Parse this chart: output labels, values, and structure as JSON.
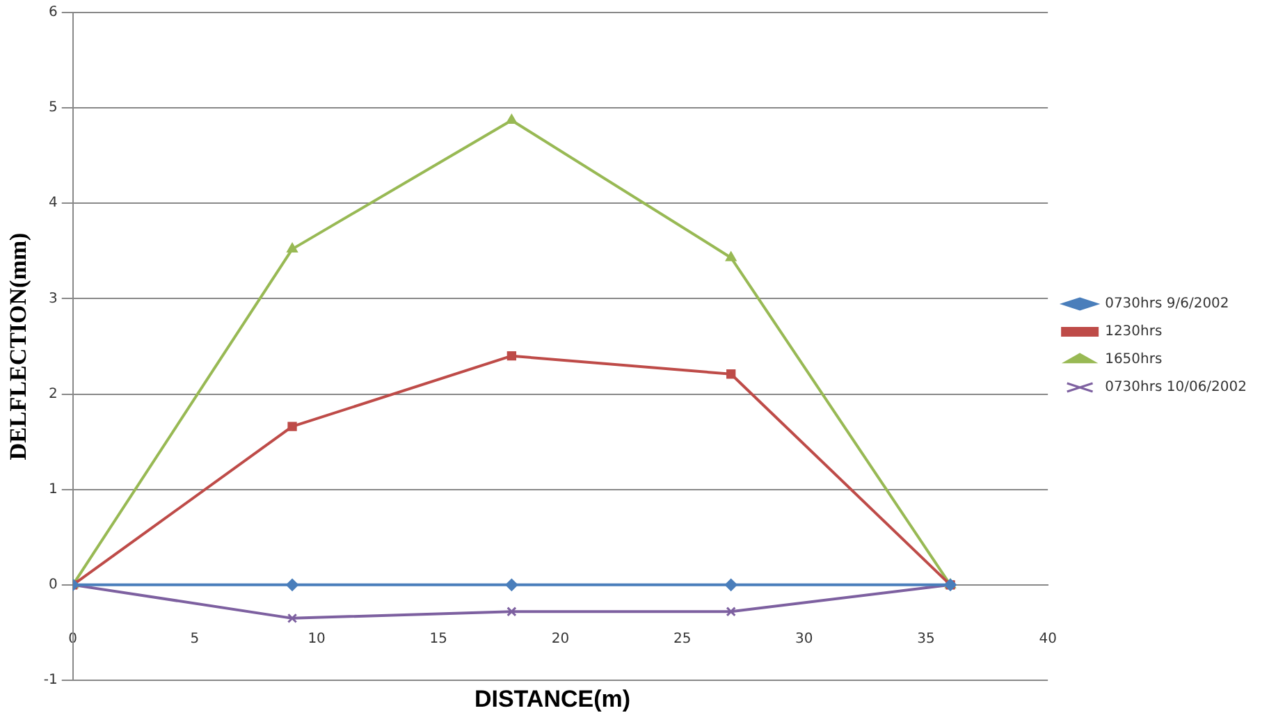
{
  "chart_data": {
    "type": "line",
    "xlabel": "DISTANCE(m)",
    "ylabel": "DELFLECTION(mm)",
    "x": [
      0,
      9,
      18,
      27,
      36
    ],
    "series": [
      {
        "name": "0730hrs 9/6/2002",
        "color": "#4a7ebb",
        "marker": "diamond",
        "values": [
          0,
          0,
          0,
          0,
          0
        ]
      },
      {
        "name": "1230hrs",
        "color": "#be4b48",
        "marker": "square",
        "values": [
          0,
          1.66,
          2.4,
          2.21,
          0
        ]
      },
      {
        "name": "1650hrs",
        "color": "#98b954",
        "marker": "triangle",
        "values": [
          0,
          3.52,
          4.87,
          3.43,
          0
        ]
      },
      {
        "name": "0730hrs 10/06/2002",
        "color": "#7d60a0",
        "marker": "cross",
        "values": [
          0,
          -0.35,
          -0.28,
          -0.28,
          0
        ]
      }
    ],
    "xlim": [
      0,
      40
    ],
    "xticks": [
      0,
      5,
      10,
      15,
      20,
      25,
      30,
      35,
      40
    ],
    "ylim": [
      -1,
      6
    ],
    "yticks": [
      -1,
      0,
      1,
      2,
      3,
      4,
      5,
      6
    ],
    "grid": "y",
    "legend": "right",
    "line_style": "solid"
  }
}
